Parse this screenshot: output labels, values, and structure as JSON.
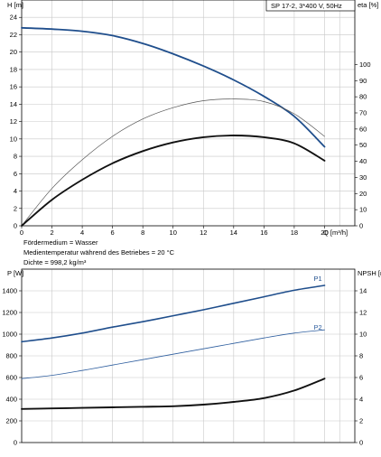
{
  "chart_data": [
    {
      "type": "line",
      "title": "SP 17-2, 3*400 V, 50Hz",
      "xlabel": "Q [m³/h]",
      "ylabel": "H [m]",
      "y2label": "eta [%]",
      "xlim": [
        0,
        22
      ],
      "ylim": [
        0,
        26
      ],
      "y2lim": [
        0,
        140
      ],
      "x_ticks": [
        0,
        2,
        4,
        6,
        8,
        10,
        12,
        14,
        16,
        18,
        20
      ],
      "y_ticks": [
        0,
        2,
        4,
        6,
        8,
        10,
        12,
        14,
        16,
        18,
        20,
        22,
        24
      ],
      "y2_ticks": [
        0,
        10,
        20,
        30,
        40,
        50,
        60,
        70,
        80,
        90,
        100
      ],
      "grid": true,
      "notes": [
        "Fördermedium = Wasser",
        "Medientemperatur während des Betriebes = 20 °C",
        "Dichte = 998,2 kg/m³"
      ],
      "series": [
        {
          "axis": "y",
          "color": "#1f4e8c",
          "width": 1.8,
          "x": [
            0,
            2,
            4,
            6,
            8,
            10,
            12,
            14,
            16,
            18,
            20
          ],
          "values": [
            22.8,
            22.65,
            22.4,
            21.9,
            21.0,
            19.8,
            18.4,
            16.8,
            14.9,
            12.6,
            9.1
          ]
        },
        {
          "axis": "y",
          "color": "#555555",
          "width": 0.7,
          "x": [
            0,
            2,
            4,
            6,
            8,
            10,
            12,
            14,
            16,
            18,
            20
          ],
          "values": [
            0,
            4.3,
            7.6,
            10.3,
            12.3,
            13.6,
            14.4,
            14.6,
            14.3,
            12.9,
            10.3
          ]
        },
        {
          "axis": "y",
          "color": "#111111",
          "width": 1.9,
          "x": [
            0,
            2,
            4,
            6,
            8,
            10,
            12,
            14,
            16,
            18,
            20
          ],
          "values": [
            0,
            3.0,
            5.3,
            7.2,
            8.6,
            9.6,
            10.2,
            10.4,
            10.2,
            9.5,
            7.5
          ]
        }
      ]
    },
    {
      "type": "line",
      "ylabel": "P [W]",
      "y2label": "NPSH [m]",
      "xlim": [
        0,
        22
      ],
      "ylim": [
        0,
        1600
      ],
      "y2lim": [
        0,
        16
      ],
      "y_ticks": [
        0,
        200,
        400,
        600,
        800,
        1000,
        1200,
        1400
      ],
      "y2_ticks": [
        0,
        2,
        4,
        6,
        8,
        10,
        12,
        14
      ],
      "grid": true,
      "series": [
        {
          "name": "P1",
          "axis": "y",
          "color": "#1f4e8c",
          "width": 1.6,
          "x": [
            0,
            2,
            4,
            6,
            8,
            10,
            12,
            14,
            16,
            18,
            20
          ],
          "values": [
            930,
            965,
            1010,
            1065,
            1115,
            1170,
            1225,
            1285,
            1345,
            1405,
            1450
          ]
        },
        {
          "name": "P2",
          "axis": "y",
          "color": "#2f5f9f",
          "width": 0.8,
          "x": [
            0,
            2,
            4,
            6,
            8,
            10,
            12,
            14,
            16,
            18,
            20
          ],
          "values": [
            590,
            620,
            665,
            715,
            765,
            815,
            865,
            915,
            965,
            1010,
            1040
          ]
        },
        {
          "axis": "y2",
          "color": "#111111",
          "width": 1.9,
          "x": [
            0,
            2,
            4,
            6,
            8,
            10,
            12,
            14,
            16,
            18,
            20
          ],
          "values": [
            3.1,
            3.15,
            3.2,
            3.25,
            3.3,
            3.35,
            3.5,
            3.75,
            4.1,
            4.8,
            5.9
          ]
        }
      ]
    }
  ]
}
